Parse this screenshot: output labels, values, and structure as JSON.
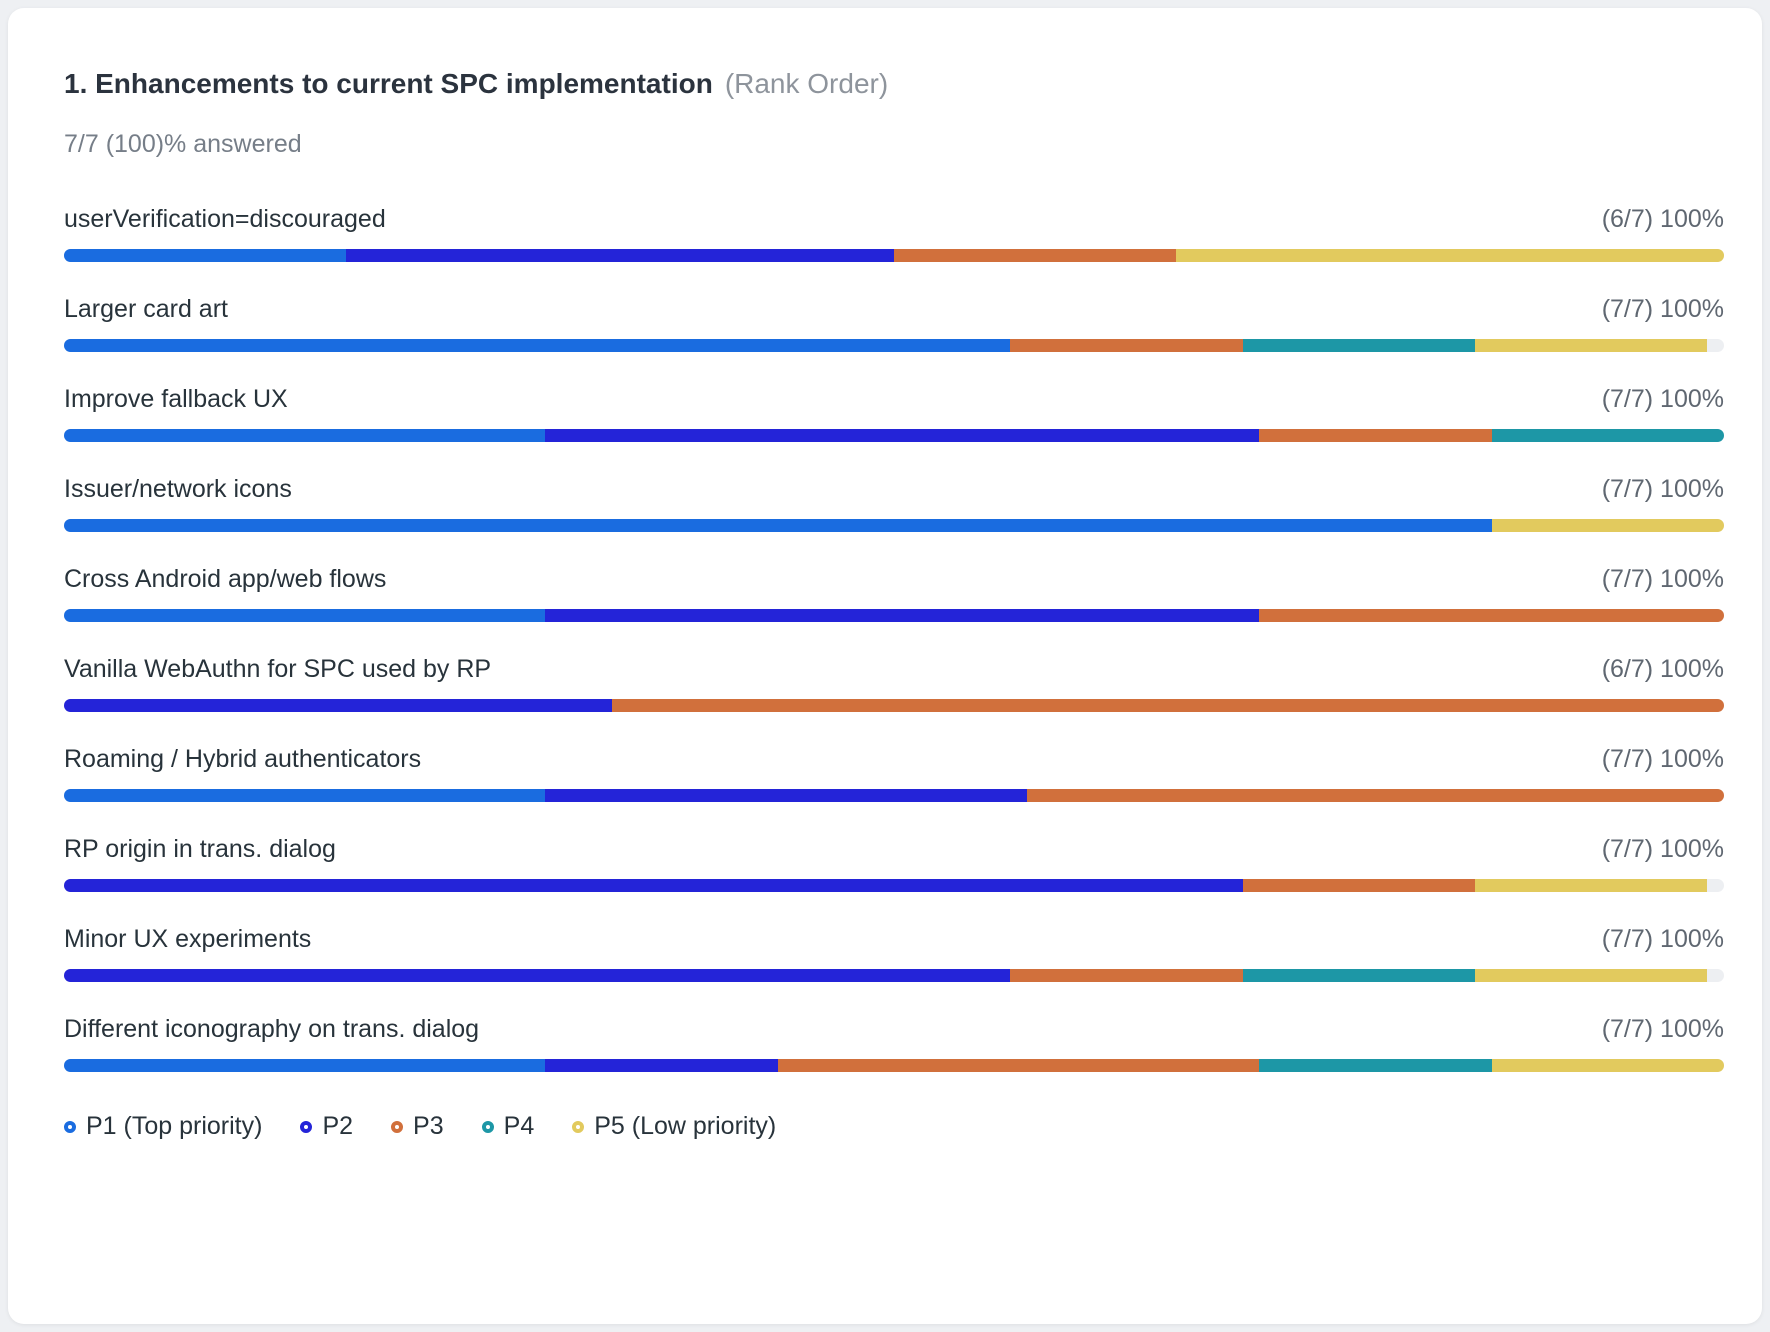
{
  "question": {
    "title": "1. Enhancements to current SPC implementation",
    "type_label": "(Rank Order)",
    "answered": "7/7 (100)% answered"
  },
  "colors": {
    "p1": "#1a6ce0",
    "p2": "#2424d8",
    "p3": "#d1703c",
    "p4": "#1d97a6",
    "p5": "#e2ca5e",
    "track": "#edeff2",
    "card_background": "#ffffff",
    "page_background": "#eef0f3"
  },
  "chart_data": {
    "type": "bar",
    "orientation": "horizontal",
    "stacked": true,
    "title": "1. Enhancements to current SPC implementation (Rank Order)",
    "subtitle": "7/7 (100)% answered",
    "value_unit": "percent of respondents assigning each priority",
    "xlim": [
      0,
      100
    ],
    "grid": false,
    "legend_position": "bottom",
    "series": [
      {
        "id": "p1",
        "name": "P1 (Top priority)",
        "color": "#1a6ce0"
      },
      {
        "id": "p2",
        "name": "P2",
        "color": "#2424d8"
      },
      {
        "id": "p3",
        "name": "P3",
        "color": "#d1703c"
      },
      {
        "id": "p4",
        "name": "P4",
        "color": "#1d97a6"
      },
      {
        "id": "p5",
        "name": "P5 (Low priority)",
        "color": "#e2ca5e"
      }
    ],
    "rows": [
      {
        "label": "userVerification=discouraged",
        "stat": "(6/7) 100%",
        "segments": [
          17,
          33,
          17,
          0,
          33
        ]
      },
      {
        "label": "Larger card art",
        "stat": "(7/7) 100%",
        "segments": [
          57,
          0,
          14,
          14,
          14
        ]
      },
      {
        "label": "Improve fallback UX",
        "stat": "(7/7) 100%",
        "segments": [
          29,
          43,
          14,
          14,
          0
        ]
      },
      {
        "label": "Issuer/network icons",
        "stat": "(7/7) 100%",
        "segments": [
          86,
          0,
          0,
          0,
          14
        ]
      },
      {
        "label": "Cross Android app/web flows",
        "stat": "(7/7) 100%",
        "segments": [
          29,
          43,
          28,
          0,
          0
        ]
      },
      {
        "label": "Vanilla WebAuthn for SPC used by RP",
        "stat": "(6/7) 100%",
        "segments": [
          0,
          33,
          67,
          0,
          0
        ]
      },
      {
        "label": "Roaming / Hybrid authenticators",
        "stat": "(7/7) 100%",
        "segments": [
          29,
          29,
          42,
          0,
          0
        ]
      },
      {
        "label": "RP origin in trans. dialog",
        "stat": "(7/7) 100%",
        "segments": [
          0,
          71,
          14,
          0,
          14
        ]
      },
      {
        "label": "Minor UX experiments",
        "stat": "(7/7) 100%",
        "segments": [
          0,
          57,
          14,
          14,
          14
        ]
      },
      {
        "label": "Different iconography on trans. dialog",
        "stat": "(7/7) 100%",
        "segments": [
          29,
          14,
          29,
          14,
          14
        ]
      }
    ]
  }
}
